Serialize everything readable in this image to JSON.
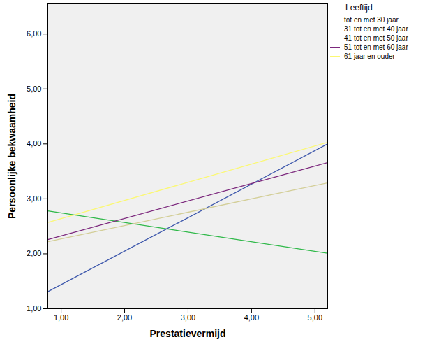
{
  "chart_data": {
    "type": "line",
    "x_label": "Prestatievermijd",
    "y_label": "Persoonlijke bekwaamheid",
    "legend_title": "Leeftijd",
    "legend": "top-right",
    "grid": false,
    "x": [
      0.79,
      5.2
    ],
    "xlim": [
      0.79,
      5.2
    ],
    "ylim": [
      1.0,
      6.55
    ],
    "xticks": [
      {
        "value": 1,
        "label": "1,00"
      },
      {
        "value": 2,
        "label": "2,00"
      },
      {
        "value": 3,
        "label": "3,00"
      },
      {
        "value": 4,
        "label": "4,00"
      },
      {
        "value": 5,
        "label": "5,00"
      }
    ],
    "yticks": [
      {
        "value": 1,
        "label": "1,00"
      },
      {
        "value": 2,
        "label": "2,00"
      },
      {
        "value": 3,
        "label": "3,00"
      },
      {
        "value": 4,
        "label": "4,00"
      },
      {
        "value": 5,
        "label": "5,00"
      },
      {
        "value": 6,
        "label": "6,00"
      }
    ],
    "series": [
      {
        "name": "tot en met 30 jaar",
        "color": "#3e58ac",
        "values": [
          1.31,
          4.0
        ]
      },
      {
        "name": "31 tot en met 40 jaar",
        "color": "#2eb848",
        "values": [
          2.78,
          2.01
        ]
      },
      {
        "name": "41 tot en met 50 jaar",
        "color": "#d3ce97",
        "values": [
          2.22,
          3.29
        ]
      },
      {
        "name": "51 tot en met 60 jaar",
        "color": "#7c287d",
        "values": [
          2.26,
          3.66
        ]
      },
      {
        "name": "61 jaar en ouder",
        "color": "#fbf873",
        "values": [
          2.57,
          4.03
        ]
      }
    ]
  }
}
